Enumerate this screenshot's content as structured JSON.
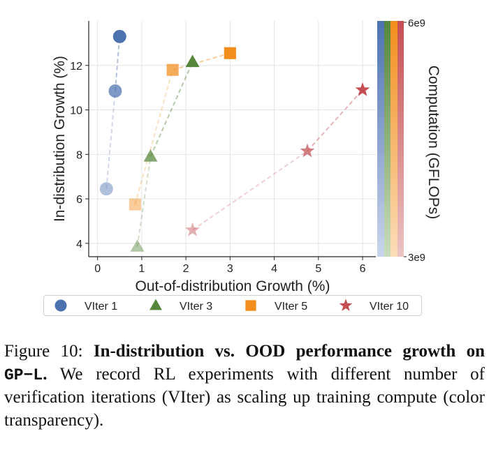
{
  "chart_data": {
    "type": "scatter",
    "xlabel": "Out-of-distribution Growth (%)",
    "ylabel": "In-distribution Growth (%)",
    "xlim": [
      -0.2,
      6.3
    ],
    "ylim": [
      3.4,
      14.0
    ],
    "xticks": [
      0,
      1,
      2,
      3,
      4,
      5,
      6
    ],
    "yticks": [
      4,
      6,
      8,
      10,
      12
    ],
    "grid": true,
    "series": [
      {
        "name": "VIter 1",
        "marker": "circle",
        "color": "#4c72b0",
        "points": [
          {
            "x": 0.2,
            "y": 6.45
          },
          {
            "x": 0.4,
            "y": 10.85
          },
          {
            "x": 0.5,
            "y": 13.3
          }
        ]
      },
      {
        "name": "VIter 3",
        "marker": "triangle",
        "color": "#55863a",
        "points": [
          {
            "x": 0.9,
            "y": 3.85
          },
          {
            "x": 1.2,
            "y": 7.9
          },
          {
            "x": 2.15,
            "y": 12.15
          }
        ]
      },
      {
        "name": "VIter 5",
        "marker": "square",
        "color": "#f28e1c",
        "points": [
          {
            "x": 0.85,
            "y": 5.75
          },
          {
            "x": 1.7,
            "y": 11.8
          },
          {
            "x": 3.0,
            "y": 12.55
          }
        ]
      },
      {
        "name": "VIter 10",
        "marker": "star",
        "color": "#c44e52",
        "points": [
          {
            "x": 2.15,
            "y": 4.6
          },
          {
            "x": 4.75,
            "y": 8.15
          },
          {
            "x": 6.0,
            "y": 10.9
          }
        ]
      }
    ],
    "point_alpha": [
      0.45,
      0.72,
      1.0
    ],
    "colorbar": {
      "label": "Computation (GFLOPs)",
      "top_label": "6e9",
      "bottom_label": "3e9"
    },
    "legend_position": "bottom"
  },
  "caption": {
    "figure_number": "Figure 10:",
    "title": "In-distribution vs. OOD performance growth on",
    "dataset": "GP−L",
    "title_end": ".",
    "body": "We record RL experiments with different number of verification iterations (VIter) as scaling up training compute (color transparency)."
  }
}
